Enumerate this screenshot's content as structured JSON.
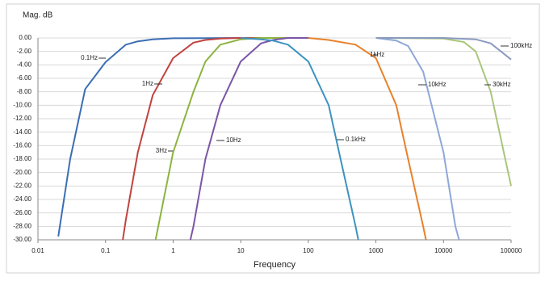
{
  "chart_data": {
    "type": "line",
    "y_label": "Mag. dB",
    "x_label": "Frequency",
    "log_x": true,
    "grid": true,
    "xlim": [
      0.01,
      100000
    ],
    "xticks": [
      0.01,
      0.1,
      1,
      10,
      100,
      1000,
      10000,
      100000
    ],
    "ylim": [
      -30,
      0
    ],
    "yticks": [
      {
        "value": 0,
        "label": "0.00"
      },
      {
        "value": -2,
        "label": "-2.00"
      },
      {
        "value": -4,
        "label": "-4.00"
      },
      {
        "value": -6,
        "label": "-6.00"
      },
      {
        "value": -8,
        "label": "-8.00"
      },
      {
        "value": -10,
        "label": "-10.00"
      },
      {
        "value": -12,
        "label": "-12.00"
      },
      {
        "value": -14,
        "label": "-14.00"
      },
      {
        "value": -16,
        "label": "-16.00"
      },
      {
        "value": -18,
        "label": "-18.00"
      },
      {
        "value": -20,
        "label": "-20.00"
      },
      {
        "value": -22,
        "label": "-22.00"
      },
      {
        "value": -24,
        "label": "-24.00"
      },
      {
        "value": -26,
        "label": "-26.00"
      },
      {
        "value": -28,
        "label": "-28.00"
      },
      {
        "value": -30,
        "label": "-30.00"
      }
    ],
    "series": [
      {
        "name": "0.1Hz",
        "color": "#3b6eb4",
        "x": [
          0.02,
          0.03,
          0.05,
          0.1,
          0.2,
          0.3,
          0.5,
          1,
          10,
          100
        ],
        "values": [
          -29.5,
          -18,
          -7.6,
          -3.6,
          -1,
          -0.5,
          -0.2,
          -0.05,
          0,
          0
        ]
      },
      {
        "name": "1Hz",
        "color": "#c0433e",
        "x": [
          0.18,
          0.2,
          0.3,
          0.5,
          1,
          2,
          3,
          5,
          10,
          100
        ],
        "values": [
          -30,
          -27,
          -17,
          -8.5,
          -3,
          -0.7,
          -0.3,
          -0.1,
          0,
          0
        ]
      },
      {
        "name": "3Hz",
        "color": "#8db33f",
        "x": [
          0.55,
          1,
          2,
          3,
          5,
          10,
          20,
          100
        ],
        "values": [
          -30,
          -17,
          -8,
          -3.5,
          -1,
          -0.2,
          0,
          0
        ]
      },
      {
        "name": "10Hz",
        "color": "#7b55a6",
        "x": [
          1.8,
          2,
          3,
          5,
          10,
          20,
          30,
          50,
          100
        ],
        "values": [
          -30,
          -28,
          -18,
          -10,
          -3.5,
          -0.8,
          -0.3,
          0,
          0
        ]
      },
      {
        "name": "0.1kHz",
        "color": "#3d93c0",
        "x": [
          10,
          20,
          30,
          50,
          100,
          200,
          300,
          500,
          550
        ],
        "values": [
          0,
          -0.2,
          -0.4,
          -1,
          -3.5,
          -10,
          -18,
          -28,
          -30
        ]
      },
      {
        "name": "1kHz",
        "color": "#e8812a",
        "x": [
          100,
          200,
          500,
          1000,
          2000,
          3000,
          5000,
          5500
        ],
        "values": [
          0,
          -0.3,
          -1,
          -3,
          -10,
          -18,
          -28,
          -30
        ]
      },
      {
        "name": "10kHz",
        "color": "#8ea8d8",
        "x": [
          1000,
          2000,
          3000,
          5000,
          10000,
          15000,
          17000
        ],
        "values": [
          0,
          -0.4,
          -1.2,
          -5,
          -17,
          -28,
          -30
        ]
      },
      {
        "name": "30kHz",
        "color": "#a9c57b",
        "x": [
          1000,
          10000,
          20000,
          30000,
          50000,
          100000
        ],
        "values": [
          0,
          -0.1,
          -0.6,
          -2,
          -8,
          -22
        ]
      },
      {
        "name": "100kHz",
        "color": "#8a9bbf",
        "x": [
          1000,
          10000,
          30000,
          50000,
          100000
        ],
        "values": [
          0,
          0,
          -0.2,
          -0.8,
          -3.2
        ]
      }
    ]
  }
}
